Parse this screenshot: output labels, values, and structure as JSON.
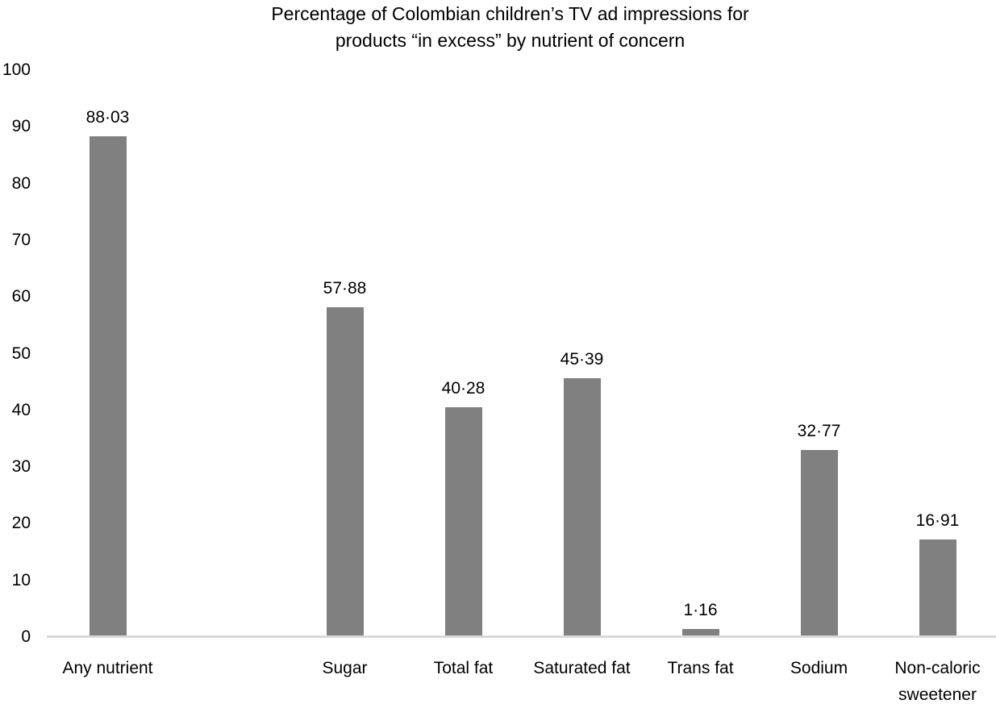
{
  "chart_data": {
    "type": "bar",
    "title": "Percentage of Colombian children’s TV ad impressions for products “in excess” by nutrient of concern",
    "title_lines": [
      "Percentage of Colombian children’s TV ad impressions for",
      "products “in excess” by nutrient of concern"
    ],
    "categories": [
      "Any nutrient",
      "Sugar",
      "Total fat",
      "Saturated fat",
      "Trans fat",
      "Sodium",
      "Non-caloric sweetener"
    ],
    "values": [
      88.03,
      57.88,
      40.28,
      45.39,
      1.16,
      32.77,
      16.91
    ],
    "value_labels": [
      "88·03",
      "57·88",
      "40·28",
      "45·39",
      "1·16",
      "32·77",
      "16·91"
    ],
    "y_ticks": [
      0,
      10,
      20,
      30,
      40,
      50,
      60,
      70,
      80,
      90,
      100
    ],
    "ylim": [
      0,
      100
    ],
    "xlabel": "",
    "ylabel": "",
    "grid": false,
    "legend": false,
    "slots": [
      0,
      2,
      3,
      4,
      5,
      6,
      7
    ],
    "total_slots": 8,
    "colors": {
      "bar": "#808080",
      "axis_line": "#d9d9d9",
      "text": "#000000",
      "background": "#ffffff"
    }
  }
}
